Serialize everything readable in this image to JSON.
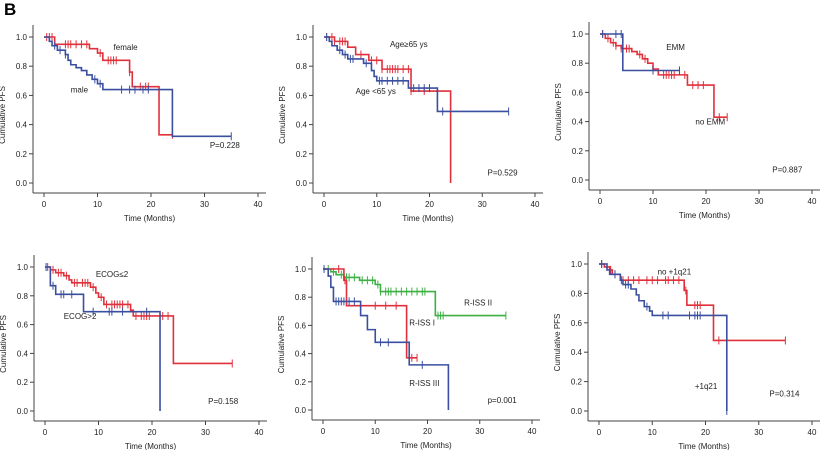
{
  "figure_letter": "B",
  "colors": {
    "red": "#e0303b",
    "blue": "#3a4fa0",
    "green": "#3cb043",
    "axis": "#444444"
  },
  "chart_data": [
    {
      "type": "line",
      "subtype": "kaplan-meier",
      "xlabel": "Time (Months)",
      "ylabel": "Cumulative PFS",
      "xlim": [
        0,
        40
      ],
      "ylim": [
        0,
        1
      ],
      "xticks": [
        0,
        10,
        20,
        30,
        40
      ],
      "yticks": [
        "0.0",
        "0.2",
        "0.4",
        "0.6",
        "0.8",
        "1.0"
      ],
      "annotation": "P=0.228",
      "series": [
        {
          "name": "female",
          "color": "red",
          "steps": [
            [
              0,
              1
            ],
            [
              2,
              0.95
            ],
            [
              8.5,
              0.92
            ],
            [
              10,
              0.89
            ],
            [
              11,
              0.84
            ],
            [
              16,
              0.76
            ],
            [
              16.5,
              0.66
            ],
            [
              21.5,
              0.33
            ]
          ],
          "end": 24,
          "censored": [
            0.5,
            1,
            1.5,
            4,
            4.5,
            5,
            6,
            7,
            8,
            10.5,
            12,
            12.5,
            13,
            13.5,
            16,
            18,
            19,
            19.5,
            24
          ]
        },
        {
          "name": "male",
          "color": "blue",
          "steps": [
            [
              0,
              1
            ],
            [
              1,
              0.97
            ],
            [
              1.5,
              0.94
            ],
            [
              2.5,
              0.91
            ],
            [
              4,
              0.88
            ],
            [
              4.5,
              0.84
            ],
            [
              5,
              0.81
            ],
            [
              6,
              0.79
            ],
            [
              7,
              0.77
            ],
            [
              8,
              0.74
            ],
            [
              9,
              0.71
            ],
            [
              10,
              0.68
            ],
            [
              11,
              0.64
            ],
            [
              24,
              0.32
            ]
          ],
          "end": 35,
          "censored": [
            2,
            3,
            4,
            9.5,
            10.5,
            14.5,
            16,
            17,
            18.5,
            19.5,
            35
          ]
        }
      ]
    },
    {
      "type": "line",
      "subtype": "kaplan-meier",
      "xlabel": "Time (Months)",
      "ylabel": "Cumulative PFS",
      "xlim": [
        0,
        40
      ],
      "ylim": [
        0,
        1
      ],
      "xticks": [
        0,
        10,
        20,
        30,
        40
      ],
      "yticks": [
        "0.0",
        "0.2",
        "0.4",
        "0.6",
        "0.8",
        "1.0"
      ],
      "annotation": "P=0.529",
      "series": [
        {
          "name": "Age≥65 ys",
          "color": "red",
          "steps": [
            [
              0,
              1
            ],
            [
              2,
              0.97
            ],
            [
              4.5,
              0.93
            ],
            [
              6,
              0.88
            ],
            [
              8.5,
              0.84
            ],
            [
              11,
              0.78
            ],
            [
              16.5,
              0.63
            ],
            [
              24,
              0
            ]
          ],
          "end": 24,
          "censored": [
            0.5,
            1.5,
            2,
            3,
            3.5,
            4,
            7,
            9,
            10,
            11,
            12,
            12.5,
            13,
            13.5,
            14,
            15,
            16,
            16.5,
            19
          ]
        },
        {
          "name": "Age <65 ys",
          "color": "blue",
          "steps": [
            [
              0,
              1
            ],
            [
              1,
              0.97
            ],
            [
              1.5,
              0.94
            ],
            [
              2.5,
              0.91
            ],
            [
              3.5,
              0.88
            ],
            [
              4.5,
              0.85
            ],
            [
              7.5,
              0.82
            ],
            [
              9,
              0.77
            ],
            [
              9.5,
              0.73
            ],
            [
              10,
              0.7
            ],
            [
              16,
              0.65
            ],
            [
              21.5,
              0.49
            ]
          ],
          "end": 35,
          "censored": [
            0.5,
            3,
            4,
            5,
            5.5,
            8,
            10.5,
            11,
            12,
            13,
            14,
            15,
            17,
            18,
            19,
            20,
            22.5,
            35
          ]
        }
      ]
    },
    {
      "type": "line",
      "subtype": "kaplan-meier",
      "xlabel": "Time (Months)",
      "ylabel": "Cumulative PFS",
      "xlim": [
        0,
        40
      ],
      "ylim": [
        0,
        1
      ],
      "xticks": [
        0,
        10,
        20,
        30,
        40
      ],
      "yticks": [
        "0.0",
        "0.2",
        "0.4",
        "0.6",
        "0.8",
        "1.0"
      ],
      "annotation": "P=0.887",
      "series": [
        {
          "name": "no EMM",
          "color": "red",
          "steps": [
            [
              0,
              1
            ],
            [
              1,
              0.97
            ],
            [
              2,
              0.94
            ],
            [
              3,
              0.92
            ],
            [
              4,
              0.9
            ],
            [
              6,
              0.88
            ],
            [
              7,
              0.86
            ],
            [
              8,
              0.83
            ],
            [
              9,
              0.8
            ],
            [
              10,
              0.76
            ],
            [
              11,
              0.72
            ],
            [
              16.5,
              0.65
            ],
            [
              21.5,
              0.43
            ]
          ],
          "end": 24,
          "censored": [
            0.5,
            1.5,
            2.5,
            3,
            4,
            5,
            5.5,
            7.5,
            8.5,
            12,
            12.5,
            13,
            13.5,
            14,
            16,
            17.5,
            18.5,
            19.5,
            22.5,
            24
          ]
        },
        {
          "name": "EMM",
          "color": "blue",
          "steps": [
            [
              0,
              1
            ],
            [
              4.3,
              0.75
            ]
          ],
          "end": 15,
          "censored": [
            0.5,
            3,
            4,
            10,
            15
          ]
        }
      ]
    },
    {
      "type": "line",
      "subtype": "kaplan-meier",
      "xlabel": "Time (Months)",
      "ylabel": "Cumulative PFS",
      "xlim": [
        0,
        40
      ],
      "ylim": [
        0,
        1
      ],
      "xticks": [
        0,
        10,
        20,
        30,
        40
      ],
      "yticks": [
        "0.0",
        "0.2",
        "0.4",
        "0.6",
        "0.8",
        "1.0"
      ],
      "annotation": "P=0.158",
      "series": [
        {
          "name": "ECOG≤2",
          "color": "red",
          "steps": [
            [
              0,
              1
            ],
            [
              1,
              0.98
            ],
            [
              2,
              0.96
            ],
            [
              3.5,
              0.94
            ],
            [
              4.5,
              0.91
            ],
            [
              5,
              0.89
            ],
            [
              8.5,
              0.86
            ],
            [
              9.5,
              0.82
            ],
            [
              10,
              0.79
            ],
            [
              11,
              0.74
            ],
            [
              16,
              0.7
            ],
            [
              16.5,
              0.66
            ],
            [
              24,
              0.33
            ]
          ],
          "end": 35,
          "censored": [
            0.5,
            1.5,
            2.5,
            3,
            4,
            5.5,
            6,
            7,
            7.5,
            8,
            9,
            10.5,
            11.5,
            12.5,
            13,
            13.5,
            14,
            14.5,
            15.5,
            17,
            18,
            18.5,
            19,
            19.5,
            22,
            23,
            35
          ]
        },
        {
          "name": "ECOG>2",
          "color": "blue",
          "steps": [
            [
              0,
              1
            ],
            [
              1,
              0.87
            ],
            [
              2,
              0.81
            ],
            [
              7.2,
              0.69
            ],
            [
              21.5,
              0
            ]
          ],
          "end": 21.5,
          "censored": [
            0.2,
            1.5,
            3,
            3.5,
            5,
            9,
            12,
            12.5,
            14.5,
            19
          ]
        }
      ]
    },
    {
      "type": "line",
      "subtype": "kaplan-meier",
      "xlabel": "Time (Months)",
      "ylabel": "Cumulative PFS",
      "xlim": [
        0,
        40
      ],
      "ylim": [
        0,
        1
      ],
      "xticks": [
        0,
        10,
        20,
        30,
        40
      ],
      "yticks": [
        "0.0",
        "0.2",
        "0.4",
        "0.6",
        "0.8",
        "1.0"
      ],
      "annotation": "p=0.001",
      "series": [
        {
          "name": "R-ISS II",
          "color": "green",
          "steps": [
            [
              0,
              1
            ],
            [
              1.5,
              0.98
            ],
            [
              2.5,
              0.96
            ],
            [
              4,
              0.94
            ],
            [
              7,
              0.92
            ],
            [
              10,
              0.89
            ],
            [
              11,
              0.84
            ],
            [
              21.5,
              0.67
            ]
          ],
          "end": 35,
          "censored": [
            1,
            2,
            3.5,
            4.5,
            5,
            6,
            7.5,
            8.5,
            9.5,
            10.5,
            11,
            12,
            12.5,
            13,
            14,
            15,
            16,
            17,
            18,
            19,
            19.5,
            22,
            22.5,
            23,
            35
          ]
        },
        {
          "name": "R-ISS I",
          "color": "red",
          "steps": [
            [
              0,
              1
            ],
            [
              4,
              0.92
            ],
            [
              4.5,
              0.74
            ],
            [
              16,
              0.37
            ]
          ],
          "end": 18,
          "censored": [
            3,
            4.2,
            10,
            12,
            14,
            17,
            18
          ]
        },
        {
          "name": "R-ISS III",
          "color": "blue",
          "steps": [
            [
              0,
              1
            ],
            [
              1,
              0.95
            ],
            [
              1.5,
              0.87
            ],
            [
              2,
              0.77
            ],
            [
              7.2,
              0.67
            ],
            [
              8.5,
              0.57
            ],
            [
              10,
              0.48
            ],
            [
              16.5,
              0.32
            ],
            [
              24,
              0
            ]
          ],
          "end": 24,
          "censored": [
            0.2,
            2.5,
            3,
            3.5,
            4,
            5,
            6,
            11,
            12.5,
            19
          ]
        }
      ]
    },
    {
      "type": "line",
      "subtype": "kaplan-meier",
      "xlabel": "Time (Months)",
      "ylabel": "Cumulative PFS",
      "xlim": [
        0,
        40
      ],
      "ylim": [
        0,
        1
      ],
      "xticks": [
        0,
        10,
        20,
        30,
        40
      ],
      "yticks": [
        "0.0",
        "0.2",
        "0.4",
        "0.6",
        "0.8",
        "1.0"
      ],
      "annotation": "P=0.314",
      "series": [
        {
          "name": "no +1q21",
          "color": "red",
          "steps": [
            [
              0,
              1
            ],
            [
              1,
              0.98
            ],
            [
              2,
              0.96
            ],
            [
              2.5,
              0.93
            ],
            [
              4,
              0.89
            ],
            [
              16,
              0.82
            ],
            [
              16.5,
              0.72
            ],
            [
              21.5,
              0.48
            ]
          ],
          "end": 35,
          "censored": [
            0.5,
            1.5,
            2.2,
            3,
            4.5,
            5.5,
            6.5,
            7.5,
            9,
            10,
            11,
            12.5,
            13,
            14,
            15,
            16.3,
            18,
            18.5,
            19,
            22.5,
            35
          ]
        },
        {
          "name": "+1q21",
          "color": "blue",
          "steps": [
            [
              0,
              1
            ],
            [
              1.5,
              0.96
            ],
            [
              2,
              0.93
            ],
            [
              4,
              0.89
            ],
            [
              4.5,
              0.86
            ],
            [
              6,
              0.83
            ],
            [
              7,
              0.79
            ],
            [
              7.5,
              0.75
            ],
            [
              8.5,
              0.71
            ],
            [
              9.5,
              0.68
            ],
            [
              10,
              0.65
            ],
            [
              24,
              0
            ]
          ],
          "end": 24,
          "censored": [
            0.5,
            3,
            4.2,
            5,
            5.5,
            9,
            12,
            13,
            17,
            18,
            18.5,
            19,
            24
          ]
        }
      ]
    }
  ]
}
